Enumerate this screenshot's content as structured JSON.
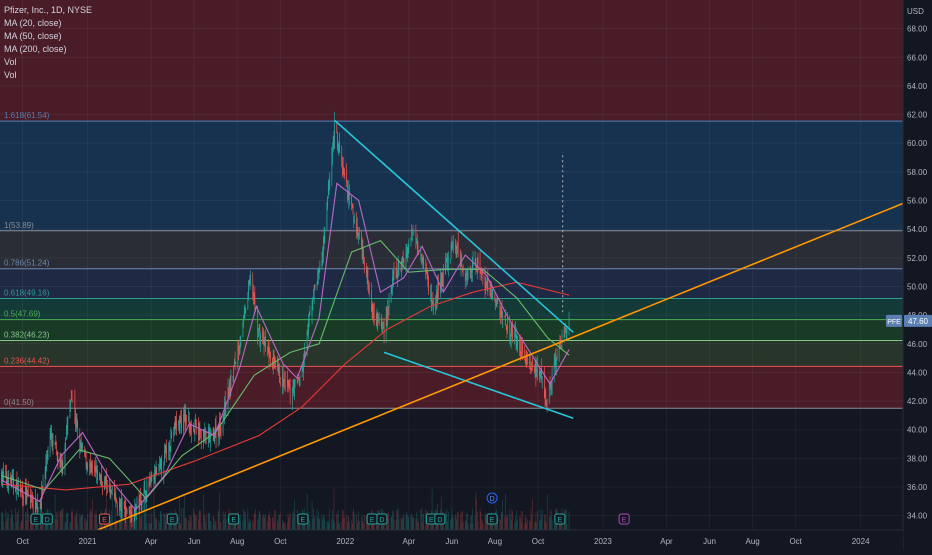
{
  "legend": {
    "title": "Pfizer, Inc., 1D, NYSE",
    "indicators": [
      "MA (20, close)",
      "MA (50, close)",
      "MA (200, close)",
      "Vol",
      "Vol"
    ]
  },
  "chart_data": {
    "type": "candlestick",
    "ticker": "PFE",
    "currency": "USD",
    "last_price": "47.60",
    "ylim": [
      33,
      70
    ],
    "xlim": [
      "2020-08-30",
      "2024-03-01"
    ],
    "y_ticks": [
      "34.00",
      "36.00",
      "38.00",
      "40.00",
      "42.00",
      "44.00",
      "46.00",
      "48.00",
      "50.00",
      "52.00",
      "54.00",
      "56.00",
      "58.00",
      "60.00",
      "62.00",
      "64.00",
      "66.00",
      "68.00"
    ],
    "x_ticks": [
      {
        "label": "Oct",
        "date": "2020-10-01"
      },
      {
        "label": "2021",
        "date": "2021-01-01"
      },
      {
        "label": "Apr",
        "date": "2021-04-01"
      },
      {
        "label": "Jun",
        "date": "2021-06-01"
      },
      {
        "label": "Aug",
        "date": "2021-08-01"
      },
      {
        "label": "Oct",
        "date": "2021-10-01"
      },
      {
        "label": "2022",
        "date": "2022-01-01"
      },
      {
        "label": "Apr",
        "date": "2022-04-01"
      },
      {
        "label": "Jun",
        "date": "2022-06-01"
      },
      {
        "label": "Aug",
        "date": "2022-08-01"
      },
      {
        "label": "Oct",
        "date": "2022-10-01"
      },
      {
        "label": "2023",
        "date": "2023-01-01"
      },
      {
        "label": "Apr",
        "date": "2023-04-01"
      },
      {
        "label": "Jun",
        "date": "2023-06-01"
      },
      {
        "label": "Aug",
        "date": "2023-08-01"
      },
      {
        "label": "Oct",
        "date": "2023-10-01"
      },
      {
        "label": "2024",
        "date": "2024-01-01"
      }
    ],
    "fib_levels": [
      {
        "label": "1.618(61.54)",
        "value": 61.54,
        "color": "#4f7fb8"
      },
      {
        "label": "1(53.89)",
        "value": 53.89,
        "color": "#8a8d96"
      },
      {
        "label": "0.786(51.24)",
        "value": 51.24,
        "color": "#6f87b0"
      },
      {
        "label": "0.618(49.16)",
        "value": 49.16,
        "color": "#2a9d8f"
      },
      {
        "label": "0.5(47.69)",
        "value": 47.69,
        "color": "#4caf50"
      },
      {
        "label": "0.382(46.23)",
        "value": 46.23,
        "color": "#81c784"
      },
      {
        "label": "0.236(44.42)",
        "value": 44.42,
        "color": "#ef5350"
      },
      {
        "label": "0(41.50)",
        "value": 41.5,
        "color": "#8a8d96"
      }
    ],
    "price_path": [
      [
        "2020-09-01",
        36.8
      ],
      [
        "2020-09-20",
        36.2
      ],
      [
        "2020-10-10",
        35.2
      ],
      [
        "2020-10-25",
        34.6
      ],
      [
        "2020-11-09",
        39.6
      ],
      [
        "2020-11-25",
        37.2
      ],
      [
        "2020-12-09",
        42.5
      ],
      [
        "2020-12-20",
        39.0
      ],
      [
        "2021-01-05",
        37.2
      ],
      [
        "2021-01-25",
        36.4
      ],
      [
        "2021-02-15",
        34.6
      ],
      [
        "2021-03-05",
        34.2
      ],
      [
        "2021-03-25",
        35.8
      ],
      [
        "2021-04-15",
        37.4
      ],
      [
        "2021-05-05",
        40.2
      ],
      [
        "2021-05-20",
        40.8
      ],
      [
        "2021-06-10",
        39.6
      ],
      [
        "2021-06-25",
        39.4
      ],
      [
        "2021-07-10",
        40.5
      ],
      [
        "2021-07-25",
        43.8
      ],
      [
        "2021-08-10",
        47.5
      ],
      [
        "2021-08-20",
        50.8
      ],
      [
        "2021-08-30",
        47.0
      ],
      [
        "2021-09-15",
        45.2
      ],
      [
        "2021-10-01",
        43.6
      ],
      [
        "2021-10-15",
        42.6
      ],
      [
        "2021-11-01",
        44.0
      ],
      [
        "2021-11-15",
        49.0
      ],
      [
        "2021-12-01",
        52.5
      ],
      [
        "2021-12-10",
        57.8
      ],
      [
        "2021-12-17",
        61.2
      ],
      [
        "2021-12-28",
        58.2
      ],
      [
        "2022-01-10",
        55.4
      ],
      [
        "2022-01-25",
        52.6
      ],
      [
        "2022-02-10",
        48.2
      ],
      [
        "2022-02-25",
        47.0
      ],
      [
        "2022-03-10",
        50.5
      ],
      [
        "2022-03-25",
        51.8
      ],
      [
        "2022-04-08",
        54.0
      ],
      [
        "2022-04-20",
        52.2
      ],
      [
        "2022-05-05",
        48.6
      ],
      [
        "2022-05-20",
        50.8
      ],
      [
        "2022-06-05",
        53.2
      ],
      [
        "2022-06-20",
        50.6
      ],
      [
        "2022-07-05",
        51.8
      ],
      [
        "2022-07-20",
        50.2
      ],
      [
        "2022-08-05",
        48.6
      ],
      [
        "2022-08-20",
        47.2
      ],
      [
        "2022-09-05",
        45.8
      ],
      [
        "2022-09-20",
        44.6
      ],
      [
        "2022-10-05",
        43.6
      ],
      [
        "2022-10-14",
        41.8
      ],
      [
        "2022-10-25",
        44.6
      ],
      [
        "2022-11-05",
        46.4
      ],
      [
        "2022-11-14",
        47.6
      ]
    ],
    "moving_averages": [
      {
        "name": "MA (200, close)",
        "color": "#e53935",
        "values": [
          [
            "2020-09-01",
            36.2
          ],
          [
            "2020-12-01",
            35.8
          ],
          [
            "2021-03-01",
            36.2
          ],
          [
            "2021-06-01",
            37.8
          ],
          [
            "2021-09-01",
            39.6
          ],
          [
            "2021-11-01",
            41.6
          ],
          [
            "2022-01-01",
            44.6
          ],
          [
            "2022-03-01",
            47.0
          ],
          [
            "2022-05-01",
            48.6
          ],
          [
            "2022-07-01",
            49.6
          ],
          [
            "2022-09-01",
            50.3
          ],
          [
            "2022-11-14",
            49.4
          ]
        ]
      },
      {
        "name": "MA (50, close)",
        "color": "#66bb6a",
        "values": [
          [
            "2020-09-01",
            36.8
          ],
          [
            "2020-11-01",
            35.8
          ],
          [
            "2020-12-20",
            38.6
          ],
          [
            "2021-02-01",
            38.0
          ],
          [
            "2021-03-25",
            35.2
          ],
          [
            "2021-05-15",
            38.2
          ],
          [
            "2021-07-01",
            39.8
          ],
          [
            "2021-08-25",
            43.8
          ],
          [
            "2021-10-15",
            45.4
          ],
          [
            "2021-11-25",
            46.0
          ],
          [
            "2022-01-10",
            52.4
          ],
          [
            "2022-02-20",
            53.2
          ],
          [
            "2022-04-01",
            51.0
          ],
          [
            "2022-05-25",
            51.2
          ],
          [
            "2022-07-15",
            51.2
          ],
          [
            "2022-09-01",
            49.2
          ],
          [
            "2022-10-15",
            46.4
          ],
          [
            "2022-11-14",
            45.2
          ]
        ]
      },
      {
        "name": "MA (20, close)",
        "color": "#ba68c8",
        "values": [
          [
            "2020-09-01",
            36.5
          ],
          [
            "2020-10-25",
            35.0
          ],
          [
            "2020-11-25",
            38.2
          ],
          [
            "2020-12-25",
            39.8
          ],
          [
            "2021-02-01",
            36.6
          ],
          [
            "2021-03-10",
            34.4
          ],
          [
            "2021-04-20",
            36.8
          ],
          [
            "2021-05-25",
            40.4
          ],
          [
            "2021-06-30",
            39.6
          ],
          [
            "2021-08-05",
            44.4
          ],
          [
            "2021-08-28",
            48.6
          ],
          [
            "2021-10-05",
            44.6
          ],
          [
            "2021-10-25",
            43.6
          ],
          [
            "2021-11-25",
            47.8
          ],
          [
            "2021-12-20",
            57.2
          ],
          [
            "2022-01-20",
            56.0
          ],
          [
            "2022-02-20",
            49.6
          ],
          [
            "2022-03-25",
            50.6
          ],
          [
            "2022-04-20",
            52.8
          ],
          [
            "2022-05-20",
            49.6
          ],
          [
            "2022-06-20",
            52.2
          ],
          [
            "2022-07-20",
            50.8
          ],
          [
            "2022-08-20",
            47.8
          ],
          [
            "2022-09-20",
            45.4
          ],
          [
            "2022-10-18",
            43.2
          ],
          [
            "2022-11-14",
            45.6
          ]
        ]
      }
    ],
    "trendlines": [
      {
        "name": "falling-resistance",
        "color": "#26c6da",
        "points": [
          [
            "2021-12-17",
            61.6
          ],
          [
            "2022-11-20",
            46.8
          ]
        ]
      },
      {
        "name": "falling-support",
        "color": "#26c6da",
        "points": [
          [
            "2022-02-25",
            45.4
          ],
          [
            "2022-11-20",
            40.8
          ]
        ]
      },
      {
        "name": "rising-support",
        "color": "#ff9800",
        "points": [
          [
            "2021-01-15",
            33.0
          ],
          [
            "2024-03-01",
            55.8
          ]
        ]
      }
    ],
    "projection_line": {
      "date": "2022-11-05",
      "from": 48.2,
      "to": 59.4
    },
    "event_markers": [
      {
        "date": "2020-10-20",
        "letter": "E",
        "color": "#26a69a"
      },
      {
        "date": "2020-11-05",
        "letter": "D",
        "color": "#26a69a"
      },
      {
        "date": "2021-01-25",
        "letter": "E",
        "color": "#ef5350"
      },
      {
        "date": "2021-05-01",
        "letter": "E",
        "color": "#26a69a"
      },
      {
        "date": "2021-07-27",
        "letter": "E",
        "color": "#26a69a"
      },
      {
        "date": "2021-11-02",
        "letter": "E",
        "color": "#26a69a"
      },
      {
        "date": "2022-02-08",
        "letter": "E",
        "color": "#26a69a"
      },
      {
        "date": "2022-02-22",
        "letter": "D",
        "color": "#26a69a"
      },
      {
        "date": "2022-05-03",
        "letter": "E",
        "color": "#26a69a"
      },
      {
        "date": "2022-05-15",
        "letter": "D",
        "color": "#26a69a"
      },
      {
        "date": "2022-07-28",
        "letter": "E",
        "color": "#26a69a"
      },
      {
        "date": "2022-11-01",
        "letter": "E",
        "color": "#26a69a"
      },
      {
        "date": "2023-01-31",
        "letter": "E",
        "color": "#ab47bc"
      }
    ],
    "dividend_marker": {
      "date": "2022-07-28",
      "letter": "D"
    }
  }
}
